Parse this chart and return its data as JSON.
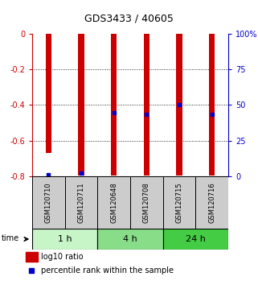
{
  "title": "GDS3433 / 40605",
  "samples": [
    "GSM120710",
    "GSM120711",
    "GSM120648",
    "GSM120708",
    "GSM120715",
    "GSM120716"
  ],
  "log10_ratio": [
    -0.67,
    -0.795,
    -0.795,
    -0.795,
    -0.795,
    -0.795
  ],
  "percentile_rank": [
    0.01,
    0.02,
    0.445,
    0.435,
    0.5,
    0.435
  ],
  "time_groups": [
    {
      "label": "1 h",
      "start": 0,
      "end": 2,
      "color": "#c8f5c8"
    },
    {
      "label": "4 h",
      "start": 2,
      "end": 4,
      "color": "#88dd88"
    },
    {
      "label": "24 h",
      "start": 4,
      "end": 6,
      "color": "#44cc44"
    }
  ],
  "ylim_left": [
    -0.8,
    0.0
  ],
  "ylim_right": [
    0,
    100
  ],
  "yticks_left": [
    0,
    -0.2,
    -0.4,
    -0.6,
    -0.8
  ],
  "yticks_right": [
    0,
    25,
    50,
    75,
    100
  ],
  "bar_color": "#cc0000",
  "dot_color": "#0000cc",
  "bar_width": 0.18,
  "left_axis_color": "#cc0000",
  "right_axis_color": "#0000cc",
  "legend_red": "log10 ratio",
  "legend_blue": "percentile rank within the sample",
  "sample_box_color": "#cccccc",
  "sample_box_border": "#000000",
  "grid_yticks": [
    -0.2,
    -0.4,
    -0.6
  ],
  "title_fontsize": 9,
  "tick_fontsize": 7,
  "sample_fontsize": 6,
  "time_fontsize": 8,
  "legend_fontsize": 7
}
